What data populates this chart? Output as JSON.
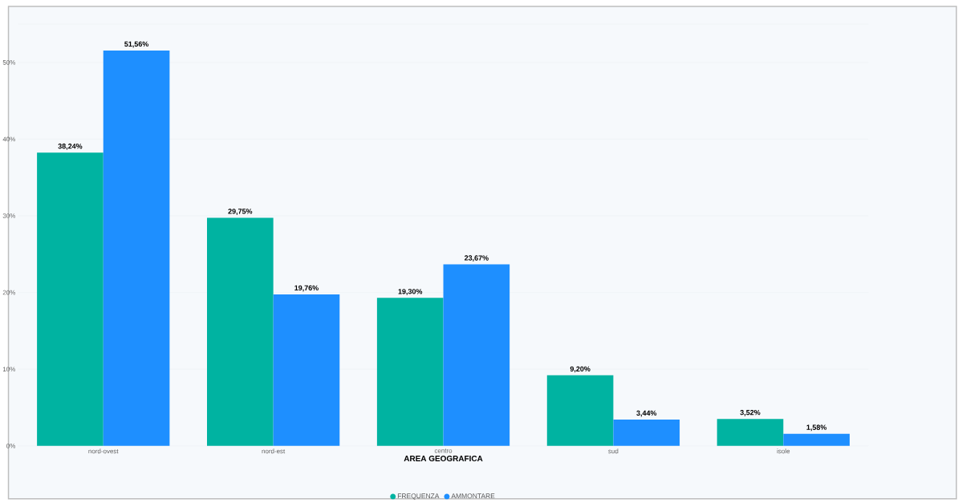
{
  "chart_data": {
    "type": "bar",
    "xlabel": "AREA GEOGRAFICA",
    "categories": [
      "nord-ovest",
      "nord-est",
      "centro",
      "sud",
      "isole"
    ],
    "series": [
      {
        "name": "FREQUENZA",
        "color": "#00b3a1",
        "values": [
          38.24,
          29.75,
          19.3,
          9.2,
          3.52
        ],
        "value_labels": [
          "38,24%",
          "29,75%",
          "19,30%",
          "9,20%",
          "3,52%"
        ]
      },
      {
        "name": "AMMONTARE",
        "color": "#1e8fff",
        "values": [
          51.56,
          19.76,
          23.67,
          3.44,
          1.58
        ],
        "value_labels": [
          "51,56%",
          "19,76%",
          "23,67%",
          "3,44%",
          "1,58%"
        ]
      }
    ],
    "ylim": [
      0,
      55
    ],
    "yticks": [
      {
        "value": 0,
        "label": "0%"
      },
      {
        "value": 10,
        "label": "10%"
      },
      {
        "value": 20,
        "label": "20%"
      },
      {
        "value": 30,
        "label": "30%"
      },
      {
        "value": 40,
        "label": "40%"
      },
      {
        "value": 50,
        "label": "50%"
      },
      {
        "value": 55,
        "label": null
      }
    ],
    "grid": "y",
    "legend": "bottom",
    "marker": "circle"
  }
}
